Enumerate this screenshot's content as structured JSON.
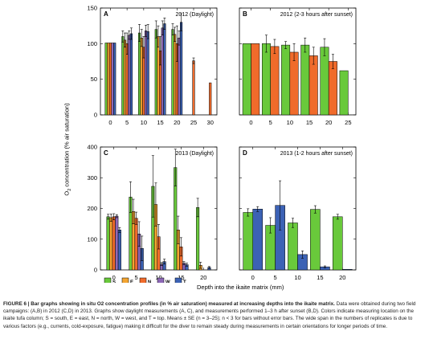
{
  "figure": {
    "y_label": "O2 concentration (% air saturation)",
    "x_label": "Depth into the ikaite matrix (mm)"
  },
  "legend": [
    {
      "key": "S",
      "label": "S",
      "color": "#69c93b"
    },
    {
      "key": "E",
      "label": "E",
      "color": "#f4a531"
    },
    {
      "key": "N",
      "label": "N",
      "color": "#f06b2b"
    },
    {
      "key": "W",
      "label": "W",
      "color": "#8d68b6"
    },
    {
      "key": "T",
      "label": "T",
      "color": "#3c62b5"
    }
  ],
  "caption": {
    "lead": "FIGURE 6 | Bar graphs showing in situ O2 concentration profiles (in % air saturation) measured at increasing depths into the ikaite matrix.",
    "body": "Data were obtained during two field campaigns: (A,B) in 2012 (C,D) in 2013. Graphs show daylight measurements (A, C), and measurements performed 1–3 h after sunset (B,D). Colors indicate measuring location on the ikaite tufa column; S = south, E = east, N = north, W = west, and T = top. Means ± SE (n = 3–25); n < 3 for bars without error bars. The wide span in the numbers of replicates is due to various factors (e.g., currents, cold-exposure, fatigue) making it difficult for the diver to remain steady during measurements in certain orientations for longer periods of time."
  },
  "chart_data": [
    {
      "type": "bar",
      "panel": "A",
      "title": "2012 (Daylight)",
      "ylim": [
        0,
        150
      ],
      "yticks": [
        0,
        50,
        100,
        150
      ],
      "xticks": [
        0,
        5,
        10,
        15,
        20,
        25,
        30
      ],
      "show_ytick_labels": true,
      "series": [
        {
          "key": "S",
          "points": [
            {
              "x": 0,
              "y": 101
            },
            {
              "x": 5,
              "y": 110,
              "err": 8
            },
            {
              "x": 10,
              "y": 115,
              "err": 12
            },
            {
              "x": 15,
              "y": 120,
              "err": 12
            },
            {
              "x": 20,
              "y": 120,
              "err": 8
            }
          ]
        },
        {
          "key": "E",
          "points": [
            {
              "x": 0,
              "y": 101
            },
            {
              "x": 5,
              "y": 105,
              "err": 10
            },
            {
              "x": 10,
              "y": 108,
              "err": 12
            },
            {
              "x": 15,
              "y": 110,
              "err": 15
            },
            {
              "x": 20,
              "y": 113,
              "err": 10
            }
          ]
        },
        {
          "key": "N",
          "points": [
            {
              "x": 0,
              "y": 101
            },
            {
              "x": 5,
              "y": 100,
              "err": 15
            },
            {
              "x": 10,
              "y": 95,
              "err": 15
            },
            {
              "x": 15,
              "y": 90,
              "err": 20
            },
            {
              "x": 20,
              "y": 100,
              "err": 25
            },
            {
              "x": 25,
              "y": 76,
              "err": 4
            },
            {
              "x": 30,
              "y": 45
            }
          ]
        },
        {
          "key": "W",
          "points": [
            {
              "x": 0,
              "y": 101
            },
            {
              "x": 5,
              "y": 112,
              "err": 6
            },
            {
              "x": 10,
              "y": 118,
              "err": 8
            },
            {
              "x": 15,
              "y": 122,
              "err": 10
            },
            {
              "x": 20,
              "y": 108,
              "err": 10
            }
          ]
        },
        {
          "key": "T",
          "points": [
            {
              "x": 0,
              "y": 101
            },
            {
              "x": 5,
              "y": 114,
              "err": 8
            },
            {
              "x": 10,
              "y": 117,
              "err": 10
            },
            {
              "x": 15,
              "y": 128,
              "err": 8
            },
            {
              "x": 20,
              "y": 130,
              "err": 12
            }
          ]
        }
      ]
    },
    {
      "type": "bar",
      "panel": "B",
      "title": "2012 (2-3 hours after sunset)",
      "ylim": [
        0,
        150
      ],
      "yticks": [
        0,
        50,
        100,
        150
      ],
      "xticks": [
        0,
        5,
        10,
        15,
        20,
        25
      ],
      "show_ytick_labels": false,
      "series": [
        {
          "key": "S",
          "points": [
            {
              "x": 0,
              "y": 100
            },
            {
              "x": 5,
              "y": 100,
              "err": 12
            },
            {
              "x": 10,
              "y": 98,
              "err": 5
            },
            {
              "x": 15,
              "y": 98,
              "err": 10
            },
            {
              "x": 20,
              "y": 95,
              "err": 12
            },
            {
              "x": 25,
              "y": 62
            }
          ]
        },
        {
          "key": "N",
          "points": [
            {
              "x": 0,
              "y": 100
            },
            {
              "x": 5,
              "y": 96,
              "err": 10
            },
            {
              "x": 10,
              "y": 88,
              "err": 12
            },
            {
              "x": 15,
              "y": 83,
              "err": 12
            },
            {
              "x": 20,
              "y": 75,
              "err": 10
            }
          ]
        }
      ]
    },
    {
      "type": "bar",
      "panel": "C",
      "title": "2013 (Daylight)",
      "ylim": [
        0,
        400
      ],
      "yticks": [
        0,
        100,
        200,
        300,
        400
      ],
      "xticks": [
        0,
        5,
        10,
        15,
        20
      ],
      "show_ytick_labels": true,
      "series": [
        {
          "key": "S",
          "points": [
            {
              "x": 0,
              "y": 173,
              "err": 8
            },
            {
              "x": 5,
              "y": 237,
              "err": 50
            },
            {
              "x": 10,
              "y": 272,
              "err": 100
            },
            {
              "x": 15,
              "y": 333,
              "err": 60
            },
            {
              "x": 20,
              "y": 203,
              "err": 30
            }
          ]
        },
        {
          "key": "E",
          "points": [
            {
              "x": 0,
              "y": 170,
              "err": 12
            },
            {
              "x": 5,
              "y": 190,
              "err": 40
            },
            {
              "x": 10,
              "y": 213,
              "err": 70
            },
            {
              "x": 15,
              "y": 130,
              "err": 45
            },
            {
              "x": 20,
              "y": 15,
              "err": 10
            }
          ]
        },
        {
          "key": "N",
          "points": [
            {
              "x": 0,
              "y": 173,
              "err": 10
            },
            {
              "x": 5,
              "y": 168,
              "err": 20
            },
            {
              "x": 10,
              "y": 108,
              "err": 40
            },
            {
              "x": 15,
              "y": 75,
              "err": 30
            }
          ]
        },
        {
          "key": "W",
          "points": [
            {
              "x": 0,
              "y": 175,
              "err": 5
            },
            {
              "x": 5,
              "y": 117,
              "err": 40
            },
            {
              "x": 10,
              "y": 19,
              "err": 5
            },
            {
              "x": 15,
              "y": 22,
              "err": 5
            }
          ]
        },
        {
          "key": "T",
          "points": [
            {
              "x": 0,
              "y": 130,
              "err": 8
            },
            {
              "x": 5,
              "y": 70,
              "err": 40
            },
            {
              "x": 10,
              "y": 27,
              "err": 8
            },
            {
              "x": 15,
              "y": 17,
              "err": 5
            },
            {
              "x": 20,
              "y": 8,
              "err": 3
            }
          ]
        }
      ]
    },
    {
      "type": "bar",
      "panel": "D",
      "title": "2013 (1-2 hours after sunset)",
      "ylim": [
        0,
        400
      ],
      "yticks": [
        0,
        100,
        200,
        300,
        400
      ],
      "xticks": [
        0,
        5,
        10,
        15,
        20
      ],
      "show_ytick_labels": false,
      "series": [
        {
          "key": "S",
          "points": [
            {
              "x": 0,
              "y": 187,
              "err": 12
            },
            {
              "x": 5,
              "y": 145,
              "err": 25
            },
            {
              "x": 10,
              "y": 153,
              "err": 15
            },
            {
              "x": 15,
              "y": 197,
              "err": 12
            },
            {
              "x": 20,
              "y": 173,
              "err": 8
            }
          ]
        },
        {
          "key": "T",
          "points": [
            {
              "x": 0,
              "y": 198,
              "err": 8
            },
            {
              "x": 5,
              "y": 210,
              "err": 80
            },
            {
              "x": 10,
              "y": 50,
              "err": 12
            },
            {
              "x": 15,
              "y": 10,
              "err": 3
            },
            {
              "x": 20,
              "y": 2
            }
          ]
        }
      ]
    }
  ]
}
